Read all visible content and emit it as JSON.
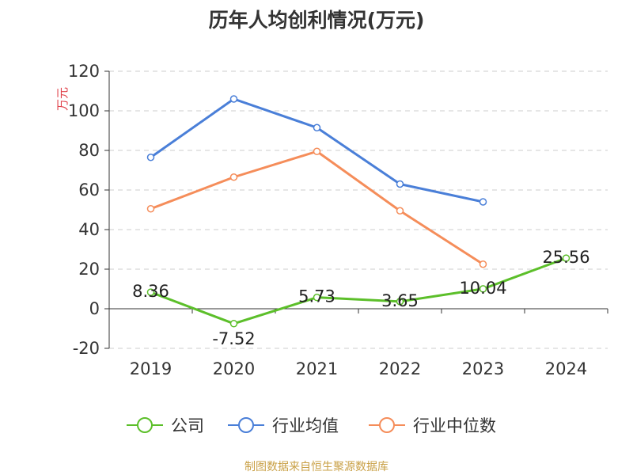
{
  "title": "历年人均创利情况(万元)",
  "source": "制图数据来自恒生聚源数据库",
  "chart_data": {
    "type": "line",
    "title": "历年人均创利情况(万元)",
    "ylabel": "万元",
    "xlabel": "",
    "ylim": [
      -20,
      120
    ],
    "yticks": [
      -20,
      0,
      20,
      40,
      60,
      80,
      100,
      120
    ],
    "grid": true,
    "legend_position": "bottom",
    "categories": [
      "2019",
      "2020",
      "2021",
      "2022",
      "2023",
      "2024"
    ],
    "series": [
      {
        "name": "公司",
        "color": "#5cbf2a",
        "values": [
          8.36,
          -7.52,
          5.73,
          3.65,
          10.04,
          25.56
        ],
        "labels": [
          "8.36",
          "-7.52",
          "5.73",
          "3.65",
          "10.04",
          "25.56"
        ]
      },
      {
        "name": "行业均值",
        "color": "#4a7fd8",
        "values": [
          76.5,
          106,
          91.5,
          63,
          54,
          null
        ]
      },
      {
        "name": "行业中位数",
        "color": "#f58d5a",
        "values": [
          50.5,
          66.5,
          79.5,
          49.5,
          22.5,
          null
        ]
      }
    ]
  }
}
